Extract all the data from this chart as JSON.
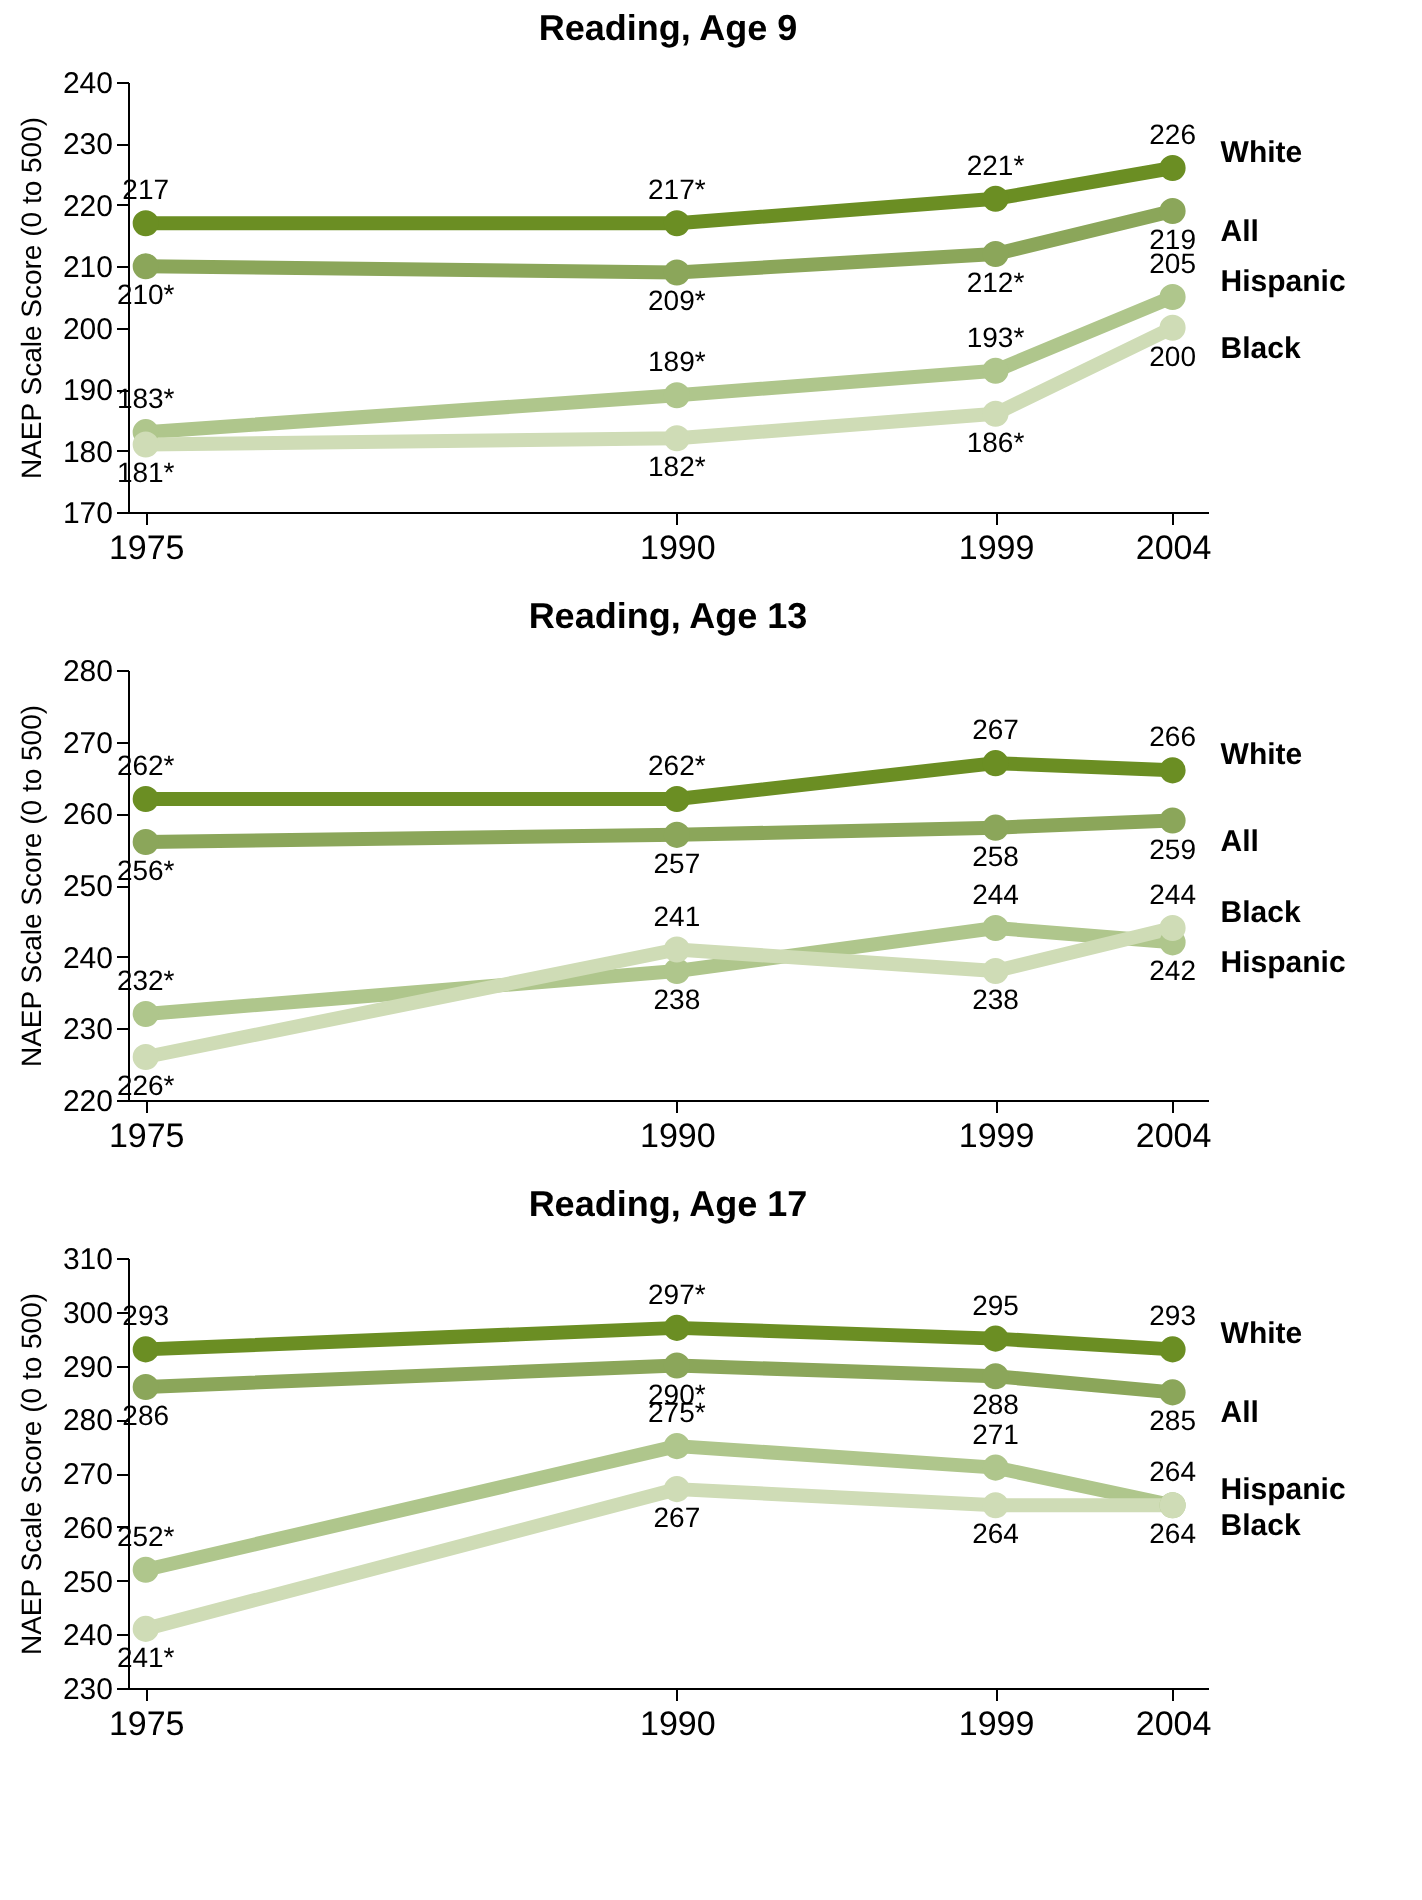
{
  "chart_data": [
    {
      "type": "line",
      "title": "Reading, Age 9",
      "ylabel": "NAEP Scale Score (0 to 500)",
      "x": [
        1975,
        1990,
        1999,
        2004
      ],
      "xlim": [
        1974.5,
        2005
      ],
      "xticks": [
        1975,
        1990,
        1999,
        2004
      ],
      "ylim": [
        170,
        240
      ],
      "yticks": [
        170,
        180,
        190,
        200,
        210,
        220,
        230,
        240
      ],
      "marker": "circle",
      "grid": false,
      "legend": false,
      "series": [
        {
          "name": "White",
          "color": "#6b8e23",
          "values": [
            217,
            217,
            221,
            226
          ],
          "value_labels": [
            "217",
            "217*",
            "221*",
            "226"
          ]
        },
        {
          "name": "All",
          "color": "#8ba65a",
          "values": [
            210,
            209,
            212,
            219
          ],
          "value_labels": [
            "210*",
            "209*",
            "212*",
            "219"
          ]
        },
        {
          "name": "Hispanic",
          "color": "#afc68c",
          "values": [
            183,
            189,
            193,
            205
          ],
          "value_labels": [
            "183*",
            "189*",
            "193*",
            "205"
          ]
        },
        {
          "name": "Black",
          "color": "#cfdcb6",
          "values": [
            181,
            182,
            186,
            200
          ],
          "value_labels": [
            "181*",
            "182*",
            "186*",
            "200"
          ]
        }
      ]
    },
    {
      "type": "line",
      "title": "Reading, Age 13",
      "ylabel": "NAEP Scale Score (0 to 500)",
      "x": [
        1975,
        1990,
        1999,
        2004
      ],
      "xlim": [
        1974.5,
        2005
      ],
      "xticks": [
        1975,
        1990,
        1999,
        2004
      ],
      "ylim": [
        220,
        280
      ],
      "yticks": [
        220,
        230,
        240,
        250,
        260,
        270,
        280
      ],
      "marker": "circle",
      "grid": false,
      "legend": false,
      "series": [
        {
          "name": "White",
          "color": "#6b8e23",
          "values": [
            262,
            262,
            267,
            266
          ],
          "value_labels": [
            "262*",
            "262*",
            "267",
            "266"
          ]
        },
        {
          "name": "All",
          "color": "#8ba65a",
          "values": [
            256,
            257,
            258,
            259
          ],
          "value_labels": [
            "256*",
            "257",
            "258",
            "259"
          ]
        },
        {
          "name": "Hispanic",
          "color": "#afc68c",
          "values": [
            232,
            238,
            244,
            242
          ],
          "value_labels": [
            "232*",
            "238",
            "244",
            "242"
          ]
        },
        {
          "name": "Black",
          "color": "#cfdcb6",
          "values": [
            226,
            241,
            238,
            244
          ],
          "value_labels": [
            "226*",
            "241",
            "238",
            "244"
          ]
        }
      ]
    },
    {
      "type": "line",
      "title": "Reading, Age 17",
      "ylabel": "NAEP Scale Score (0 to 500)",
      "x": [
        1975,
        1990,
        1999,
        2004
      ],
      "xlim": [
        1974.5,
        2005
      ],
      "xticks": [
        1975,
        1990,
        1999,
        2004
      ],
      "ylim": [
        230,
        310
      ],
      "yticks": [
        230,
        240,
        250,
        260,
        270,
        280,
        290,
        300,
        310
      ],
      "marker": "circle",
      "grid": false,
      "legend": false,
      "series": [
        {
          "name": "White",
          "color": "#6b8e23",
          "values": [
            293,
            297,
            295,
            293
          ],
          "value_labels": [
            "293",
            "297*",
            "295",
            "293"
          ]
        },
        {
          "name": "All",
          "color": "#8ba65a",
          "values": [
            286,
            290,
            288,
            285
          ],
          "value_labels": [
            "286",
            "290*",
            "288",
            "285"
          ]
        },
        {
          "name": "Hispanic",
          "color": "#afc68c",
          "values": [
            252,
            275,
            271,
            264
          ],
          "value_labels": [
            "252*",
            "275*",
            "271",
            "264"
          ]
        },
        {
          "name": "Black",
          "color": "#cfdcb6",
          "values": [
            241,
            267,
            264,
            264
          ],
          "value_labels": [
            "241*",
            "267",
            "264",
            "264"
          ]
        }
      ]
    }
  ]
}
